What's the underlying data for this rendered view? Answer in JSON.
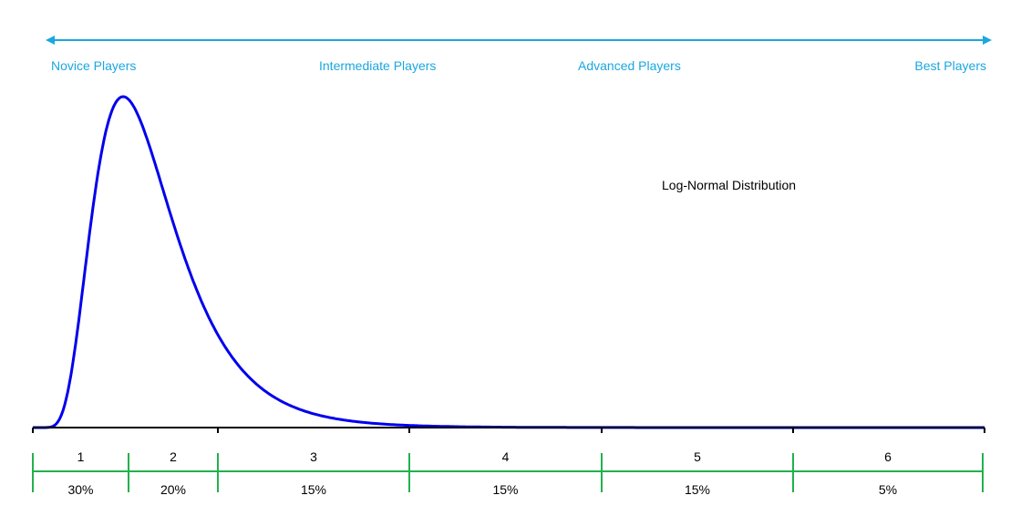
{
  "chart_data": {
    "type": "line",
    "title": "Log-Normal Distribution",
    "xlabel": "",
    "ylabel": "",
    "skill_axis_labels": [
      "Novice Players",
      "Intermediate Players",
      "Advanced Players",
      "Best Players"
    ],
    "distribution": {
      "family": "log-normal",
      "mu": 0.15,
      "sigma": 0.45,
      "xlim": [
        0,
        10
      ]
    },
    "segments": [
      {
        "name": "1",
        "share": "30%"
      },
      {
        "name": "2",
        "share": "20%"
      },
      {
        "name": "3",
        "share": "15%"
      },
      {
        "name": "4",
        "share": "15%"
      },
      {
        "name": "5",
        "share": "15%"
      },
      {
        "name": "6",
        "share": "5%"
      }
    ],
    "grid": false,
    "colors": {
      "curve": "#0000ee",
      "arrow": "#1aa7df",
      "segments": "#22b14c",
      "axis": "#000000"
    }
  }
}
